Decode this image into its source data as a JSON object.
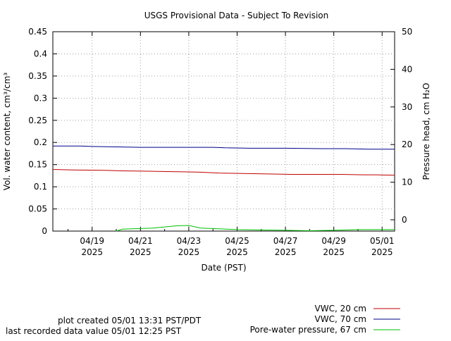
{
  "chart_data": {
    "type": "line",
    "title": "USGS Provisional Data - Subject To Revision",
    "xlabel": "Date (PST)",
    "ylabel_left": "Vol. water content, cm³/cm³",
    "ylabel_right": "Pressure head, cm H₂O",
    "ylim_left": [
      0,
      0.45
    ],
    "ylim_right": [
      -3,
      50
    ],
    "xlim": [
      "2025-04-17T09:00",
      "2025-05-01T12:25"
    ],
    "yticks_left": [
      "0",
      "0.05",
      "0.1",
      "0.15",
      "0.2",
      "0.25",
      "0.3",
      "0.35",
      "0.4",
      "0.45"
    ],
    "yticks_right": [
      "0",
      "10",
      "20",
      "30",
      "40",
      "50"
    ],
    "xticks": [
      {
        "date": "2025-04-19",
        "label1": "04/19",
        "label2": "2025"
      },
      {
        "date": "2025-04-21",
        "label1": "04/21",
        "label2": "2025"
      },
      {
        "date": "2025-04-23",
        "label1": "04/23",
        "label2": "2025"
      },
      {
        "date": "2025-04-25",
        "label1": "04/25",
        "label2": "2025"
      },
      {
        "date": "2025-04-27",
        "label1": "04/27",
        "label2": "2025"
      },
      {
        "date": "2025-04-29",
        "label1": "04/29",
        "label2": "2025"
      },
      {
        "date": "2025-05-01",
        "label1": "05/01",
        "label2": "2025"
      }
    ],
    "grid": true,
    "legend_position": "bottom-right",
    "series": [
      {
        "name": "VWC, 20 cm",
        "axis": "left",
        "color": "#c00000",
        "x": [
          "2025-04-17T09:00",
          "2025-04-17T12:00",
          "2025-04-18T06:00",
          "2025-04-19T12:00",
          "2025-04-20T06:00",
          "2025-04-21T12:00",
          "2025-04-22T12:00",
          "2025-04-23T12:00",
          "2025-04-24T06:00",
          "2025-04-25T06:00",
          "2025-04-26T06:00",
          "2025-04-27T06:00",
          "2025-04-28T00:00",
          "2025-04-29T06:00",
          "2025-04-30T06:00",
          "2025-04-30T18:00",
          "2025-05-01T12:25"
        ],
        "y": [
          0.139,
          0.139,
          0.138,
          0.137,
          0.136,
          0.135,
          0.134,
          0.133,
          0.131,
          0.13,
          0.129,
          0.128,
          0.128,
          0.128,
          0.127,
          0.127,
          0.126
        ]
      },
      {
        "name": "VWC, 70 cm",
        "axis": "left",
        "color": "#00008b",
        "x": [
          "2025-04-17T09:00",
          "2025-04-18T12:00",
          "2025-04-19T00:00",
          "2025-04-20T00:00",
          "2025-04-21T00:00",
          "2025-04-22T00:00",
          "2025-04-23T00:00",
          "2025-04-24T00:00",
          "2025-04-24T12:00",
          "2025-04-25T12:00",
          "2025-04-27T00:00",
          "2025-04-28T12:00",
          "2025-04-29T12:00",
          "2025-04-30T12:00",
          "2025-05-01T12:25"
        ],
        "y": [
          0.192,
          0.192,
          0.191,
          0.19,
          0.189,
          0.189,
          0.189,
          0.189,
          0.188,
          0.187,
          0.187,
          0.186,
          0.186,
          0.185,
          0.185
        ]
      },
      {
        "name": "Pore-water pressure, 67 cm",
        "axis": "right",
        "color": "#00c000",
        "x": [
          "2025-04-20T00:00",
          "2025-04-20T06:00",
          "2025-04-21T12:00",
          "2025-04-22T12:00",
          "2025-04-23T00:00",
          "2025-04-23T12:00",
          "2025-04-24T06:00",
          "2025-04-25T00:00",
          "2025-04-26T00:00",
          "2025-04-27T00:00",
          "2025-04-28T00:00",
          "2025-04-29T00:00",
          "2025-04-30T00:00",
          "2025-05-01T00:00",
          "2025-05-01T12:25"
        ],
        "y": [
          -3.0,
          -2.5,
          -2.2,
          -1.6,
          -1.5,
          -2.2,
          -2.4,
          -2.6,
          -2.7,
          -2.8,
          -2.9,
          -2.8,
          -2.6,
          -2.6,
          -2.6
        ]
      }
    ]
  },
  "footer": {
    "plot_created": "plot created 05/01 13:31 PST/PDT",
    "last_recorded": "last recorded data value 05/01 12:25 PST"
  }
}
